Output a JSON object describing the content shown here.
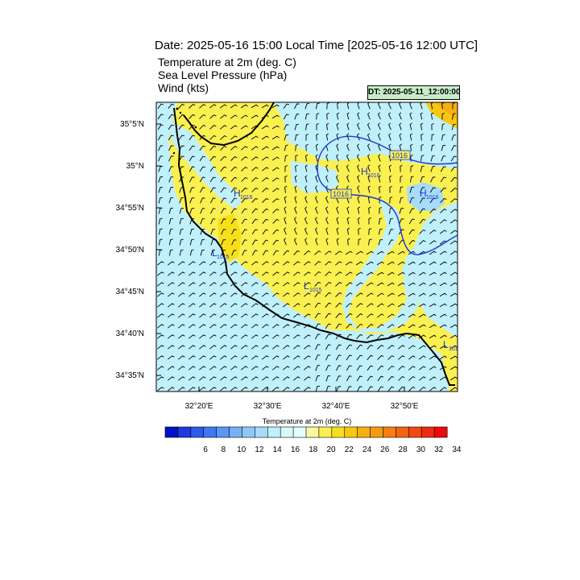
{
  "title": "Date: 2025-05-16  15:00 Local Time [2025-05-16  12:00 UTC]",
  "fields": [
    "Temperature at 2m   (deg. C)",
    "Sea Level Pressure   (hPa)",
    "Wind   (kts)"
  ],
  "dt_label": "DT: 2025-05-11_12:00:00",
  "lat_labels": [
    "35°5'N",
    "35°N",
    "34°55'N",
    "34°50'N",
    "34°45'N",
    "34°40'N",
    "34°35'N"
  ],
  "lon_labels": [
    "32°20'E",
    "32°30'E",
    "32°40'E",
    "32°50'E"
  ],
  "colorbar": {
    "title": "Temperature at 2m  (deg. C)",
    "tick_labels": [
      "6",
      "8",
      "10",
      "12",
      "14",
      "16",
      "18",
      "20",
      "22",
      "24",
      "26",
      "28",
      "30",
      "32",
      "34"
    ],
    "colors": [
      "#0010c8",
      "#1f38e0",
      "#2e5aec",
      "#3f78f2",
      "#5a96f4",
      "#77b0f6",
      "#8ec8f8",
      "#a6dcfa",
      "#bff0fc",
      "#d4fafa",
      "#e6fdfd",
      "#fbf6a0",
      "#faf050",
      "#f7e01a",
      "#f6c812",
      "#f5b012",
      "#f59a10",
      "#f48010",
      "#f26410",
      "#f04a10",
      "#ee2a10",
      "#ea0a0a"
    ]
  },
  "isobar_labels": [
    "1016",
    "1016"
  ],
  "pressure_centers": [
    {
      "type": "H",
      "value": "1016"
    },
    {
      "type": "H",
      "value": "1016"
    },
    {
      "type": "H",
      "value": "1016"
    },
    {
      "type": "L",
      "value": "1015"
    },
    {
      "type": "L",
      "value": "1015"
    },
    {
      "type": "L",
      "value": "101"
    }
  ],
  "colors": {
    "sea_fill": "#bff0fc",
    "warm_fill": "#faf050",
    "warm_dark": "#f6c812",
    "hot_fill": "#f5b012",
    "cool_fill": "#a6dcfa",
    "isobar": "#1c34d4",
    "coast": "#000000",
    "dt_box": "#c8ecc8"
  }
}
